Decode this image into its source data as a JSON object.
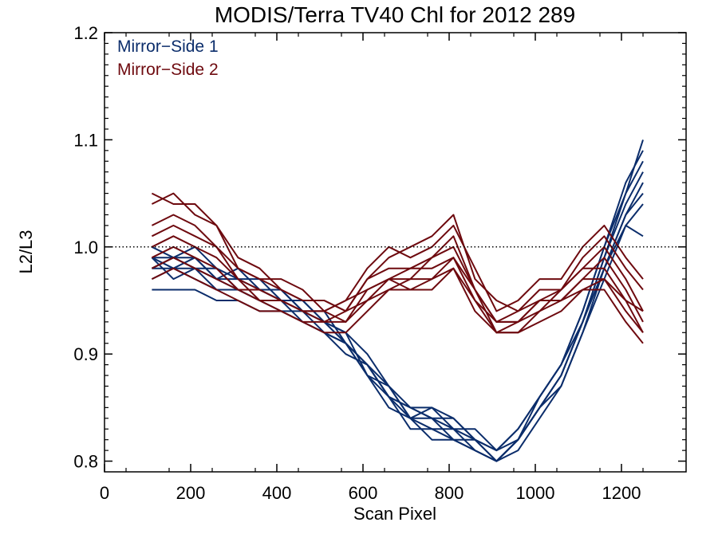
{
  "chart_data": {
    "type": "line",
    "title": "MODIS/Terra TV40 Chl for 2012 289",
    "xlabel": "Scan Pixel",
    "ylabel": "L2/L3",
    "xlim": [
      0,
      1350
    ],
    "ylim": [
      0.79,
      1.2
    ],
    "xticks": [
      0,
      200,
      400,
      600,
      800,
      1000,
      1200
    ],
    "xtick_labels": [
      "0",
      "200",
      "400",
      "600",
      "800",
      "1000",
      "1200"
    ],
    "yticks": [
      0.8,
      0.9,
      1.0,
      1.1,
      1.2
    ],
    "ytick_labels": [
      "0.8",
      "0.9",
      "1.0",
      "1.1",
      "1.2"
    ],
    "reference_line": {
      "y": 1.0,
      "style": "dotted"
    },
    "grid": false,
    "legend_position": "top-left",
    "legend": [
      "Mirror−Side 1",
      "Mirror−Side 2"
    ],
    "colors": {
      "Mirror−Side 1": "#0b2d6b",
      "Mirror−Side 2": "#6e0a0f"
    },
    "series": [
      {
        "group": 0,
        "x": [
          110,
          160,
          210,
          260,
          310,
          360,
          410,
          460,
          510,
          560,
          610,
          660,
          710,
          760,
          810,
          860,
          910,
          960,
          1010,
          1060,
          1110,
          1160,
          1210,
          1250
        ],
        "y": [
          0.99,
          0.98,
          0.99,
          0.97,
          0.97,
          0.96,
          0.95,
          0.95,
          0.93,
          0.91,
          0.89,
          0.86,
          0.85,
          0.84,
          0.84,
          0.82,
          0.8,
          0.82,
          0.85,
          0.88,
          0.93,
          0.99,
          1.05,
          1.1
        ]
      },
      {
        "group": 0,
        "x": [
          110,
          160,
          210,
          260,
          310,
          360,
          410,
          460,
          510,
          560,
          610,
          660,
          710,
          760,
          810,
          860,
          910,
          960,
          1010,
          1060,
          1110,
          1160,
          1210,
          1250
        ],
        "y": [
          0.98,
          0.99,
          0.98,
          0.98,
          0.96,
          0.96,
          0.96,
          0.94,
          0.93,
          0.92,
          0.88,
          0.87,
          0.84,
          0.85,
          0.83,
          0.83,
          0.81,
          0.83,
          0.86,
          0.89,
          0.94,
          1.0,
          1.05,
          1.08
        ]
      },
      {
        "group": 0,
        "x": [
          110,
          160,
          210,
          260,
          310,
          360,
          410,
          460,
          510,
          560,
          610,
          660,
          710,
          760,
          810,
          860,
          910,
          960,
          1010,
          1060,
          1110,
          1160,
          1210,
          1250
        ],
        "y": [
          0.97,
          0.98,
          0.97,
          0.96,
          0.96,
          0.95,
          0.94,
          0.94,
          0.92,
          0.9,
          0.89,
          0.86,
          0.83,
          0.83,
          0.82,
          0.81,
          0.8,
          0.82,
          0.85,
          0.88,
          0.93,
          0.98,
          1.03,
          1.06
        ]
      },
      {
        "group": 0,
        "x": [
          110,
          160,
          210,
          260,
          310,
          360,
          410,
          460,
          510,
          560,
          610,
          660,
          710,
          760,
          810,
          860,
          910,
          960,
          1010,
          1060,
          1110,
          1160,
          1210,
          1250
        ],
        "y": [
          0.96,
          0.96,
          0.96,
          0.95,
          0.95,
          0.94,
          0.94,
          0.93,
          0.92,
          0.91,
          0.88,
          0.85,
          0.84,
          0.82,
          0.82,
          0.81,
          0.8,
          0.81,
          0.84,
          0.87,
          0.92,
          0.97,
          1.02,
          1.04
        ]
      },
      {
        "group": 0,
        "x": [
          110,
          160,
          210,
          260,
          310,
          360,
          410,
          460,
          510,
          560,
          610,
          660,
          710,
          760,
          810,
          860,
          910,
          960,
          1010,
          1060,
          1110,
          1160,
          1210,
          1250
        ],
        "y": [
          1.0,
          0.99,
          1.0,
          0.98,
          0.97,
          0.97,
          0.95,
          0.95,
          0.93,
          0.92,
          0.9,
          0.87,
          0.85,
          0.85,
          0.84,
          0.82,
          0.81,
          0.83,
          0.86,
          0.89,
          0.94,
          1.0,
          1.06,
          1.09
        ]
      },
      {
        "group": 0,
        "x": [
          110,
          160,
          210,
          260,
          310,
          360,
          410,
          460,
          510,
          560,
          610,
          660,
          710,
          760,
          810,
          860,
          910,
          960,
          1010,
          1060,
          1110,
          1160,
          1210,
          1250
        ],
        "y": [
          0.99,
          0.99,
          0.99,
          0.97,
          0.98,
          0.96,
          0.96,
          0.94,
          0.94,
          0.91,
          0.89,
          0.86,
          0.85,
          0.84,
          0.83,
          0.82,
          0.8,
          0.82,
          0.86,
          0.89,
          0.93,
          0.99,
          1.04,
          1.07
        ]
      },
      {
        "group": 0,
        "x": [
          110,
          160,
          210,
          260,
          310,
          360,
          410,
          460,
          510,
          560,
          610,
          660,
          710,
          760,
          810,
          860,
          910,
          960,
          1010,
          1060,
          1110,
          1160,
          1210,
          1250
        ],
        "y": [
          0.98,
          0.98,
          0.98,
          0.97,
          0.96,
          0.95,
          0.95,
          0.94,
          0.93,
          0.91,
          0.88,
          0.86,
          0.84,
          0.83,
          0.83,
          0.81,
          0.8,
          0.82,
          0.85,
          0.88,
          0.93,
          0.98,
          1.03,
          1.05
        ]
      },
      {
        "group": 0,
        "x": [
          110,
          160,
          210,
          260,
          310,
          360,
          410,
          460,
          510,
          560,
          610,
          660,
          710,
          760,
          810,
          860,
          910,
          960,
          1010,
          1060,
          1110,
          1160,
          1210,
          1250
        ],
        "y": [
          0.99,
          0.97,
          0.98,
          0.96,
          0.96,
          0.96,
          0.95,
          0.93,
          0.92,
          0.91,
          0.89,
          0.87,
          0.84,
          0.84,
          0.82,
          0.82,
          0.81,
          0.82,
          0.85,
          0.87,
          0.92,
          0.98,
          1.02,
          1.01
        ]
      },
      {
        "group": 1,
        "x": [
          110,
          160,
          210,
          260,
          310,
          360,
          410,
          460,
          510,
          560,
          610,
          660,
          710,
          760,
          810,
          860,
          910,
          960,
          1010,
          1060,
          1110,
          1160,
          1210,
          1250
        ],
        "y": [
          1.05,
          1.04,
          1.04,
          1.02,
          0.99,
          0.98,
          0.96,
          0.95,
          0.95,
          0.94,
          0.97,
          0.99,
          1.0,
          1.01,
          1.03,
          0.97,
          0.95,
          0.94,
          0.96,
          0.96,
          0.99,
          1.01,
          0.98,
          0.96
        ]
      },
      {
        "group": 1,
        "x": [
          110,
          160,
          210,
          260,
          310,
          360,
          410,
          460,
          510,
          560,
          610,
          660,
          710,
          760,
          810,
          860,
          910,
          960,
          1010,
          1060,
          1110,
          1160,
          1210,
          1250
        ],
        "y": [
          1.04,
          1.05,
          1.03,
          1.02,
          0.98,
          0.97,
          0.97,
          0.96,
          0.94,
          0.95,
          0.98,
          1.0,
          0.99,
          1.0,
          1.02,
          0.98,
          0.94,
          0.95,
          0.97,
          0.97,
          1.0,
          1.02,
          0.99,
          0.97
        ]
      },
      {
        "group": 1,
        "x": [
          110,
          160,
          210,
          260,
          310,
          360,
          410,
          460,
          510,
          560,
          610,
          660,
          710,
          760,
          810,
          860,
          910,
          960,
          1010,
          1060,
          1110,
          1160,
          1210,
          1250
        ],
        "y": [
          1.02,
          1.03,
          1.02,
          1.0,
          0.98,
          0.97,
          0.96,
          0.95,
          0.95,
          0.94,
          0.97,
          0.98,
          0.98,
          0.99,
          1.01,
          0.96,
          0.93,
          0.94,
          0.95,
          0.96,
          0.98,
          1.0,
          0.97,
          0.94
        ]
      },
      {
        "group": 1,
        "x": [
          110,
          160,
          210,
          260,
          310,
          360,
          410,
          460,
          510,
          560,
          610,
          660,
          710,
          760,
          810,
          860,
          910,
          960,
          1010,
          1060,
          1110,
          1160,
          1210,
          1250
        ],
        "y": [
          1.01,
          1.02,
          1.01,
          1.0,
          0.97,
          0.96,
          0.95,
          0.94,
          0.94,
          0.93,
          0.96,
          0.97,
          0.97,
          0.99,
          1.0,
          0.96,
          0.92,
          0.93,
          0.95,
          0.95,
          0.97,
          0.99,
          0.96,
          0.93
        ]
      },
      {
        "group": 1,
        "x": [
          110,
          160,
          210,
          260,
          310,
          360,
          410,
          460,
          510,
          560,
          610,
          660,
          710,
          760,
          810,
          860,
          910,
          960,
          1010,
          1060,
          1110,
          1160,
          1210,
          1250
        ],
        "y": [
          1.0,
          1.01,
          1.0,
          0.99,
          0.97,
          0.95,
          0.95,
          0.94,
          0.93,
          0.94,
          0.95,
          0.97,
          0.98,
          0.98,
          0.99,
          0.95,
          0.93,
          0.93,
          0.94,
          0.96,
          0.98,
          0.98,
          0.95,
          0.92
        ]
      },
      {
        "group": 1,
        "x": [
          110,
          160,
          210,
          260,
          310,
          360,
          410,
          460,
          510,
          560,
          610,
          660,
          710,
          760,
          810,
          860,
          910,
          960,
          1010,
          1060,
          1110,
          1160,
          1210,
          1250
        ],
        "y": [
          0.99,
          1.0,
          0.99,
          0.98,
          0.96,
          0.95,
          0.94,
          0.93,
          0.93,
          0.93,
          0.95,
          0.96,
          0.97,
          0.97,
          0.98,
          0.95,
          0.92,
          0.92,
          0.94,
          0.95,
          0.97,
          0.97,
          0.94,
          0.92
        ]
      },
      {
        "group": 1,
        "x": [
          110,
          160,
          210,
          260,
          310,
          360,
          410,
          460,
          510,
          560,
          610,
          660,
          710,
          760,
          810,
          860,
          910,
          960,
          1010,
          1060,
          1110,
          1160,
          1210,
          1250
        ],
        "y": [
          0.98,
          0.99,
          0.98,
          0.97,
          0.96,
          0.96,
          0.95,
          0.94,
          0.94,
          0.95,
          0.96,
          0.97,
          0.96,
          0.97,
          0.99,
          0.96,
          0.93,
          0.93,
          0.95,
          0.95,
          0.96,
          0.97,
          0.95,
          0.94
        ]
      },
      {
        "group": 1,
        "x": [
          110,
          160,
          210,
          260,
          310,
          360,
          410,
          460,
          510,
          560,
          610,
          660,
          710,
          760,
          810,
          860,
          910,
          960,
          1010,
          1060,
          1110,
          1160,
          1210,
          1250
        ],
        "y": [
          0.97,
          0.98,
          0.97,
          0.96,
          0.95,
          0.94,
          0.94,
          0.93,
          0.92,
          0.92,
          0.94,
          0.96,
          0.96,
          0.96,
          0.98,
          0.94,
          0.92,
          0.92,
          0.93,
          0.94,
          0.96,
          0.96,
          0.93,
          0.91
        ]
      }
    ]
  }
}
